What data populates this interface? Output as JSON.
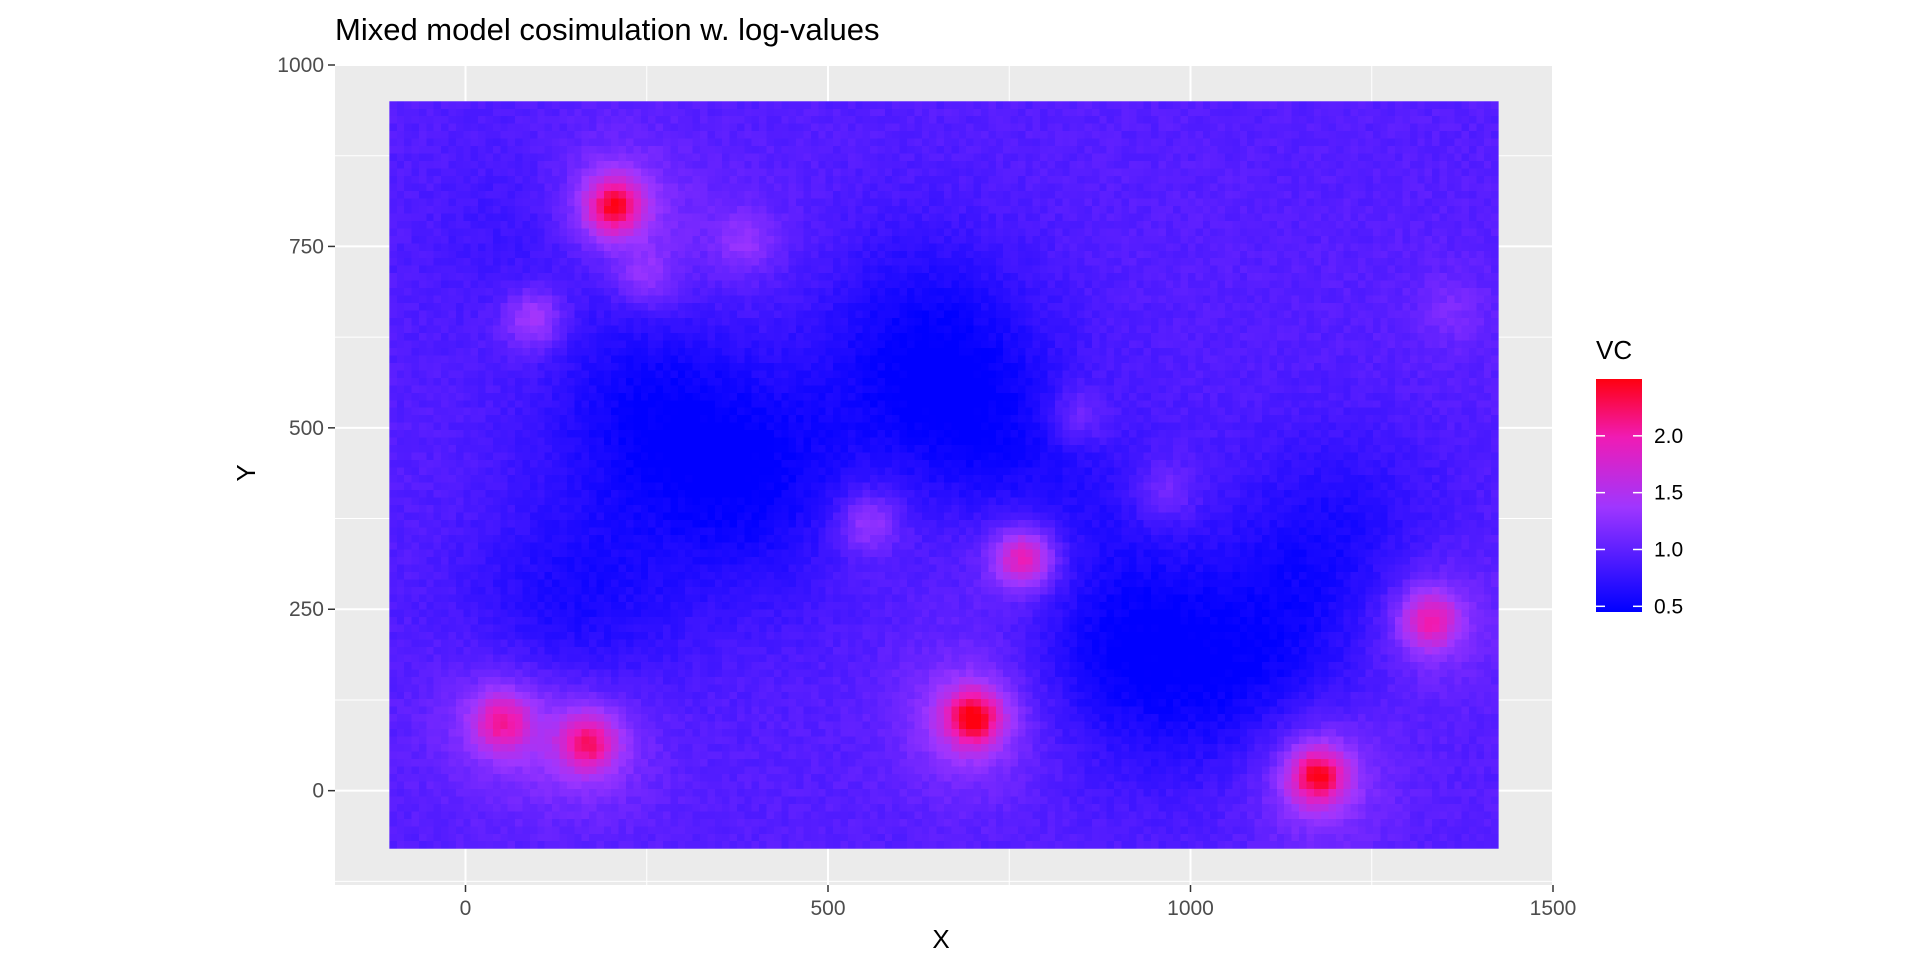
{
  "chart_data": {
    "type": "heatmap",
    "title": "Mixed model cosimulation w. log-values",
    "xlabel": "X",
    "ylabel": "Y",
    "xlim": [
      -180,
      1500
    ],
    "ylim": [
      -130,
      1000
    ],
    "x_ticks": [
      0,
      500,
      1000,
      1500
    ],
    "x_tick_labels": [
      "0",
      "500",
      "1000",
      "1500"
    ],
    "y_ticks": [
      0,
      250,
      500,
      750,
      1000
    ],
    "y_tick_labels": [
      "0",
      "250",
      "500",
      "750",
      "1000"
    ],
    "grid": true,
    "panel_background": "#ebebeb",
    "grid_color": "#ffffff",
    "raster_extent": {
      "x": [
        -105,
        1425
      ],
      "y": [
        -80,
        950
      ]
    },
    "hotspots": [
      {
        "x": 205,
        "y": 805,
        "value": 2.4
      },
      {
        "x": 95,
        "y": 650,
        "value": 1.6
      },
      {
        "x": 250,
        "y": 705,
        "value": 1.35
      },
      {
        "x": 385,
        "y": 755,
        "value": 1.3
      },
      {
        "x": 555,
        "y": 370,
        "value": 1.5
      },
      {
        "x": 770,
        "y": 320,
        "value": 2.1
      },
      {
        "x": 845,
        "y": 515,
        "value": 1.35
      },
      {
        "x": 965,
        "y": 410,
        "value": 1.3
      },
      {
        "x": 50,
        "y": 95,
        "value": 2.0
      },
      {
        "x": 170,
        "y": 65,
        "value": 2.1
      },
      {
        "x": 700,
        "y": 100,
        "value": 2.45
      },
      {
        "x": 1175,
        "y": 20,
        "value": 2.4
      },
      {
        "x": 1330,
        "y": 235,
        "value": 2.0
      },
      {
        "x": 1360,
        "y": 660,
        "value": 1.15
      }
    ],
    "lows": [
      {
        "x": 260,
        "y": 520,
        "value": 0.55
      },
      {
        "x": 420,
        "y": 410,
        "value": 0.55
      },
      {
        "x": 670,
        "y": 540,
        "value": 0.6
      },
      {
        "x": 820,
        "y": 420,
        "value": 0.6
      },
      {
        "x": 900,
        "y": 200,
        "value": 0.55
      },
      {
        "x": 1080,
        "y": 150,
        "value": 0.6
      },
      {
        "x": 1200,
        "y": 340,
        "value": 0.6
      },
      {
        "x": 150,
        "y": 250,
        "value": 0.6
      },
      {
        "x": 130,
        "y": 720,
        "value": 0.65
      },
      {
        "x": 620,
        "y": 650,
        "value": 0.7
      }
    ],
    "background_value": 0.95,
    "legend": {
      "title": "VC",
      "position": "right",
      "breaks": [
        0.5,
        1.0,
        1.5,
        2.0
      ],
      "labels": [
        "0.5",
        "1.0",
        "1.5",
        "2.0"
      ],
      "range": [
        0.45,
        2.5
      ],
      "low_color": "#0000ff",
      "high_color": "#ff0000"
    }
  }
}
